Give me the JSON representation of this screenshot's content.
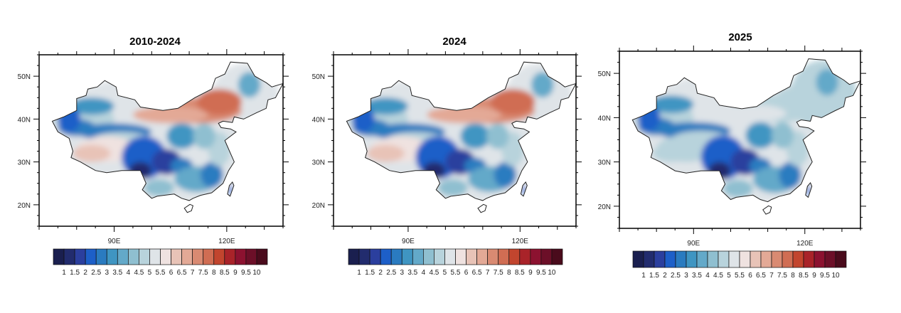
{
  "panels": [
    {
      "title": "2010-2024"
    },
    {
      "title": "2024"
    },
    {
      "title": "2025"
    }
  ],
  "map": {
    "lon_range": [
      70,
      135
    ],
    "lat_range": [
      15,
      55
    ],
    "x_tick_labels": [
      {
        "lon": 90,
        "label": "90E"
      },
      {
        "lon": 120,
        "label": "120E"
      }
    ],
    "y_tick_labels": [
      {
        "lat": 20,
        "label": "20N"
      },
      {
        "lat": 30,
        "label": "30N"
      },
      {
        "lat": 40,
        "label": "40N"
      },
      {
        "lat": 50,
        "label": "50N"
      }
    ],
    "region": "China"
  },
  "colorbar": {
    "labels": [
      "1",
      "1.5",
      "2",
      "2.5",
      "3",
      "3.5",
      "4",
      "4.5",
      "5",
      "5.5",
      "6",
      "6.5",
      "7",
      "7.5",
      "8",
      "8.5",
      "9",
      "9.5",
      "10"
    ],
    "colors": [
      "#1a1f4f",
      "#222c6e",
      "#2b3f9e",
      "#1d5fc8",
      "#2a7bc0",
      "#3f95c2",
      "#63a9c9",
      "#8fbfd0",
      "#b8d3dc",
      "#dfe4e8",
      "#efe2e0",
      "#e8c3b7",
      "#e3a996",
      "#d98a72",
      "#d06d53",
      "#c2452e",
      "#a92329",
      "#8c1230",
      "#6c0f28",
      "#4a0b1c"
    ]
  }
}
